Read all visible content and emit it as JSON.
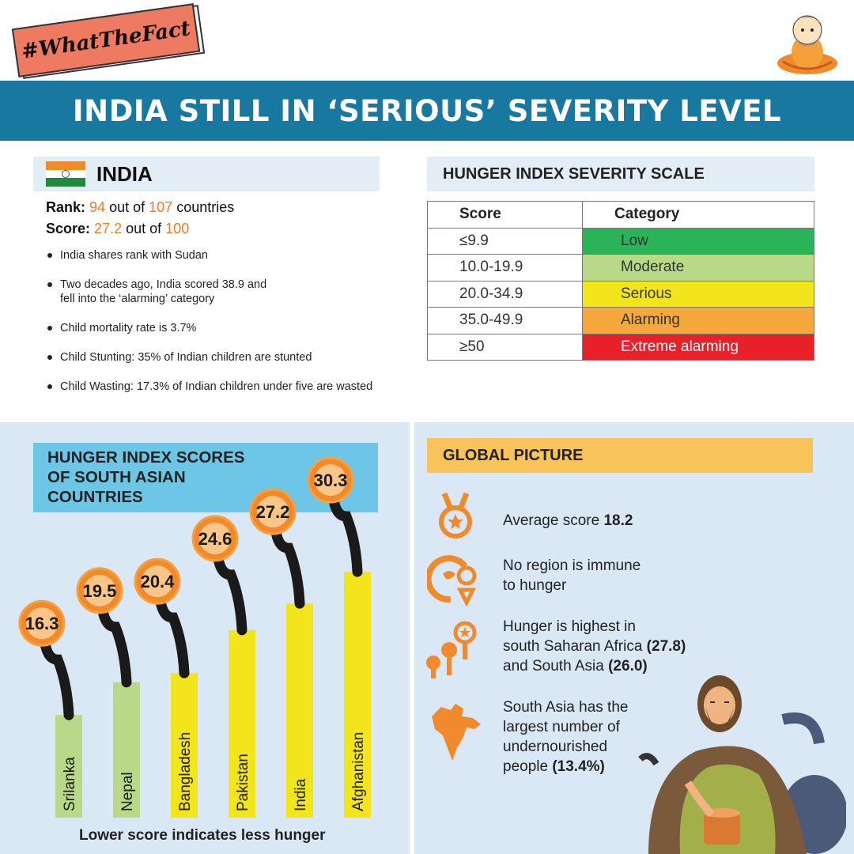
{
  "tag": "#WhatTheFact",
  "banner_title": "INDIA STILL IN ‘SERIOUS’ SEVERITY LEVEL",
  "india": {
    "title": "INDIA",
    "rank_label": "Rank:",
    "rank_value": "94",
    "rank_middle": "out of",
    "rank_total": "107",
    "rank_suffix": "countries",
    "score_label": "Score:",
    "score_value": "27.2",
    "score_middle": "out of",
    "score_total": "100",
    "facts": [
      "India shares rank with Sudan",
      "Two decades ago, India scored 38.9 and",
      "fell into the ‘alarming’ category",
      "Child mortality rate is 3.7%",
      "Child Stunting: 35% of Indian children are stunted",
      "Child Wasting: 17.3% of Indian children under five are wasted"
    ]
  },
  "scale": {
    "title": "HUNGER INDEX SEVERITY SCALE",
    "col_score": "Score",
    "col_category": "Category",
    "rows": [
      {
        "score": "≤9.9",
        "category": "Low",
        "color": "#2bb35a"
      },
      {
        "score": "10.0-19.9",
        "category": "Moderate",
        "color": "#b9d989"
      },
      {
        "score": "20.0-34.9",
        "category": "Serious",
        "color": "#f2e51c"
      },
      {
        "score": "35.0-49.9",
        "category": "Alarming",
        "color": "#f6a83c"
      },
      {
        "score": "≥50",
        "category": "Extreme alarming",
        "color": "#e8202a"
      }
    ]
  },
  "chart_title_lines": [
    "HUNGER INDEX SCORES",
    "OF SOUTH ASIAN",
    "COUNTRIES"
  ],
  "chart_note": "Lower score indicates less hunger",
  "chart_data": {
    "type": "bar",
    "title": "HUNGER INDEX SCORES OF SOUTH ASIAN COUNTRIES",
    "categories": [
      "Srilanka",
      "Nepal",
      "Bangladesh",
      "Pakistan",
      "India",
      "Afghanistan"
    ],
    "values": [
      16.3,
      19.5,
      20.4,
      24.6,
      27.2,
      30.3
    ],
    "value_labels": [
      "16.3",
      "19.5",
      "20.4",
      "24.6",
      "27.2",
      "30.3"
    ],
    "bar_colors": [
      "#b9d989",
      "#b9d989",
      "#f2e51c",
      "#f2e51c",
      "#f2e51c",
      "#f2e51c"
    ],
    "ylim": [
      14,
      31
    ],
    "grid": false,
    "xlabel": "",
    "ylabel": ""
  },
  "global": {
    "title": "GLOBAL PICTURE",
    "avg_text": "Average score",
    "avg_value": "18.2",
    "immune_line1": "No region is immune",
    "immune_line2": "to hunger",
    "highest_line1": "Hunger is highest in",
    "highest_line2_text": "south Saharan Africa",
    "highest_line2_value": "(27.8)",
    "highest_line3_text": "and South Asia",
    "highest_line3_value": "(26.0)",
    "sa_line1": "South Asia has the",
    "sa_line2": "largest number of",
    "sa_line3": "undernourished",
    "sa_line4_text": "people",
    "sa_line4_value": "(13.4%)"
  },
  "colors": {
    "banner": "#1878a0",
    "accent_orange": "#e8802a",
    "panel_bg": "#d9e8f4"
  }
}
